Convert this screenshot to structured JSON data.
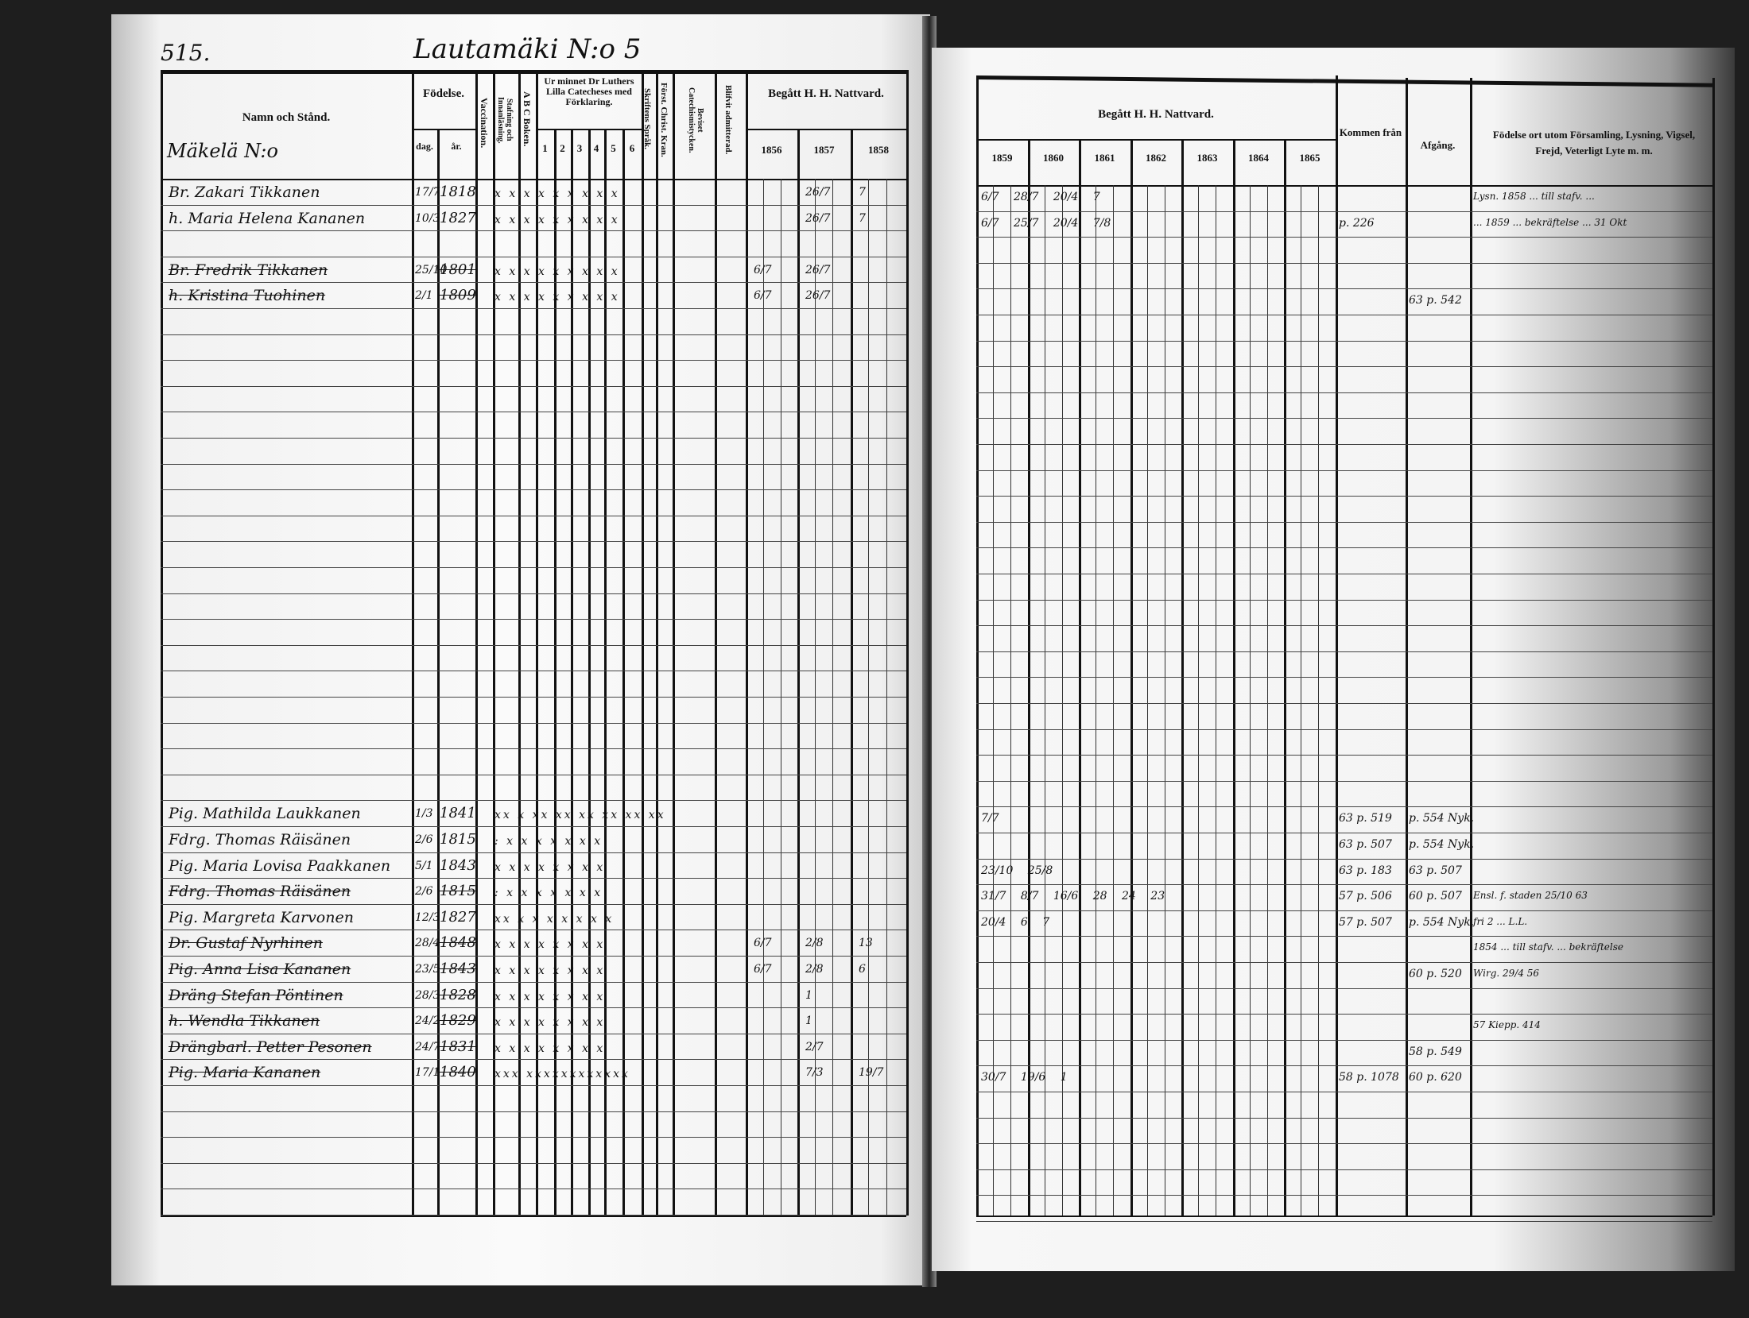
{
  "left_page": {
    "page_number": "515.",
    "farm_title": "Lautamäki N:o 5",
    "section_label": "Mäkelä N:o",
    "headers": {
      "name": "Namn och Stånd.",
      "birth": "Födelse.",
      "birth_day": "dag.",
      "birth_year": "år.",
      "vaccination": "Vaccination.",
      "reading": "Stafning och Innanläsning.",
      "abc": "A B C Boken.",
      "catechism": "Ur minnet Dr Luthers Lilla Catecheses med Förklaring.",
      "catechism_parts": [
        "1",
        "2",
        "3",
        "4",
        "5",
        "6"
      ],
      "scripture": "Skriftens Språk.",
      "christ": "Först. Christ. Kran.",
      "catechism_proof": "Beviset Catechismistycken.",
      "admitted": "Blifvit admitterad.",
      "communion": "Begått H. H. Nattvard.",
      "years": [
        "1856",
        "1857",
        "1858"
      ]
    },
    "rows": [
      {
        "name": "Br. Zakari Tikkanen",
        "day": "17/7",
        "year": "1818",
        "marks": "x x x x x x x x x",
        "comm": [
          "",
          "26/7",
          "7"
        ]
      },
      {
        "name": "h. Maria Helena Kananen",
        "day": "10/3",
        "year": "1827",
        "marks": "x x x x x x x x x",
        "comm": [
          "",
          "26/7",
          "7"
        ]
      },
      {},
      {
        "name": "Br. Fredrik Tikkanen",
        "day": "25/10",
        "year": "1801",
        "marks": "x x x x x x x x x",
        "struck": true,
        "comm": [
          "6/7",
          "26/7",
          ""
        ]
      },
      {
        "name": "h. Kristina Tuohinen",
        "day": "2/1",
        "year": "1809",
        "marks": "x x x x x x x x x",
        "struck": true,
        "comm": [
          "6/7",
          "26/7",
          ""
        ]
      },
      {},
      {},
      {},
      {},
      {},
      {},
      {},
      {},
      {},
      {},
      {},
      {},
      {},
      {},
      {},
      {},
      {},
      {},
      {},
      {
        "name": "Pig. Mathilda Laukkanen",
        "day": "1/3",
        "year": "1841",
        "marks": "xx x xx xx xx xx xx xx"
      },
      {
        "name": "Fdrg. Thomas Räisänen",
        "day": "2/6",
        "year": "1815",
        "marks": ": x x x x x x x"
      },
      {
        "name": "Pig. Maria Lovisa Paakkanen",
        "day": "5/1",
        "year": "1843",
        "marks": "x x x x x x x x"
      },
      {
        "name": "Fdrg. Thomas Räisänen",
        "day": "2/6",
        "year": "1815",
        "marks": ": x x x x x x x",
        "struck": true
      },
      {
        "name": "Pig. Margreta Karvonen",
        "day": "12/3",
        "year": "1827",
        "marks": "xx x x x x x x x"
      },
      {
        "name": "Dr. Gustaf Nyrhinen",
        "day": "28/4",
        "year": "1848",
        "marks": "x x x x x x x x",
        "struck": true,
        "comm": [
          "6/7",
          "2/8",
          "13"
        ]
      },
      {
        "name": "Pig. Anna Lisa Kananen",
        "day": "23/5",
        "year": "1843",
        "marks": "x x x x x x x x",
        "struck": true,
        "comm": [
          "6/7",
          "2/8",
          "6"
        ]
      },
      {
        "name": "Dräng Stefan Pöntinen",
        "day": "28/3",
        "year": "1828",
        "marks": "x x x x x x x x",
        "struck": true,
        "comm": [
          "",
          "1",
          ""
        ]
      },
      {
        "name": "h. Wendla Tikkanen",
        "day": "24/2",
        "year": "1829",
        "marks": "x x x x x x x x",
        "struck": true,
        "comm": [
          "",
          "1",
          ""
        ]
      },
      {
        "name": "Drängbarl. Petter Pesonen",
        "day": "24/7",
        "year": "1831",
        "marks": "x x x x x x x x",
        "struck": true,
        "comm": [
          "",
          "2/7",
          ""
        ]
      },
      {
        "name": "Pig. Maria Kananen",
        "day": "17/1",
        "year": "1840",
        "marks": "xxx xxxxxxxxxxxx",
        "struck": true,
        "comm": [
          "",
          "7/3",
          "19/7"
        ]
      }
    ]
  },
  "right_page": {
    "headers": {
      "communion": "Begått H. H. Nattvard.",
      "years": [
        "1859",
        "1860",
        "1861",
        "1862",
        "1863",
        "1864",
        "1865"
      ],
      "from": "Kommen från",
      "departure": "Afgång.",
      "notes": "Födelse ort utom Församling, Lysning, Vigsel, Frejd, Veterligt Lyte m. m."
    },
    "rows": [
      {
        "comm": "6/7   28/7   20/4   7",
        "from": "",
        "dep": "",
        "note": "Lysn. 1858 ... till stafv. ... "
      },
      {
        "comm": "6/7   25/7   20/4   7/8",
        "from": "p. 226",
        "dep": "",
        "note": "... 1859 ... bekräftelse ... 31 Okt"
      },
      {},
      {
        "comm": "",
        "from": "",
        "dep": "",
        "note": ""
      },
      {
        "comm": "",
        "from": "",
        "dep": "63 p. 542",
        "note": ""
      },
      {},
      {},
      {},
      {},
      {},
      {},
      {},
      {},
      {},
      {},
      {},
      {},
      {},
      {},
      {},
      {},
      {},
      {},
      {},
      {
        "comm": "7/7",
        "from": "63 p. 519",
        "dep": "p. 554 Nyk.",
        "note": ""
      },
      {
        "comm": "",
        "from": "63 p. 507",
        "dep": "p. 554 Nyk.",
        "note": ""
      },
      {
        "comm": "23/10  25/8",
        "from": "63 p. 183",
        "dep": "63 p. 507",
        "note": ""
      },
      {
        "comm": "31/7  8/7  16/6  28  24  23",
        "from": "57 p. 506",
        "dep": "60 p. 507",
        "note": "Ensl. f. staden 25/10 63"
      },
      {
        "comm": "20/4  6  7",
        "from": "57 p. 507",
        "dep": "p. 554 Nyk.",
        "note": "fri 2 ... L.L."
      },
      {
        "comm": "",
        "from": "",
        "dep": "",
        "note": "1854 ... till stafv. ... bekräftelse"
      },
      {
        "comm": "",
        "from": "",
        "dep": "60 p. 520",
        "note": "Wirg. 29/4 56"
      },
      {},
      {
        "comm": "",
        "from": "",
        "dep": "",
        "note": "57 Kiepp. 414"
      },
      {
        "comm": "",
        "from": "",
        "dep": "58 p. 549",
        "note": ""
      },
      {
        "comm": "30/7  19/6  1",
        "from": "58 p. 1078",
        "dep": "60 p. 620",
        "note": ""
      }
    ]
  }
}
